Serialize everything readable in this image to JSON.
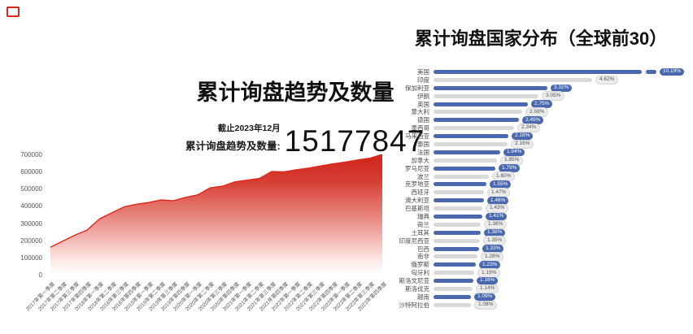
{
  "left_chart": {
    "title": "累计询盘趋势及数量",
    "as_of": "截止2023年12月",
    "stat_label": "累计询盘趋势及数量:",
    "total": "15177847"
  },
  "right_chart": {
    "title": "累计询盘国家分布（全球前30）"
  },
  "colors": {
    "red_line": "#e02517",
    "red_fill_top": "#cf251b",
    "blue_bar": "#4a68ad",
    "gray_bar": "#d9d9d9"
  },
  "chart_data": [
    {
      "type": "area",
      "title": "累计询盘趋势及数量",
      "x": [
        "2017年第一季度",
        "2017年第二季度",
        "2017年第三季度",
        "2017年第四季度",
        "2018年第一季度",
        "2018年第二季度",
        "2018年第三季度",
        "2018年第四季度",
        "2019年第一季度",
        "2019年第二季度",
        "2019年第三季度",
        "2019年第四季度",
        "2020年第一季度",
        "2020年第二季度",
        "2020年第三季度",
        "2020年第四季度",
        "2021年第一季度",
        "2021年第二季度",
        "2021年第三季度",
        "2021年第四季度",
        "2022年第一季度",
        "2022年第二季度",
        "2022年第三季度",
        "2022年第四季度",
        "2023年第一季度",
        "2023年第二季度",
        "2023年第三季度",
        "2023年第四季度"
      ],
      "values": [
        160000,
        195000,
        230000,
        260000,
        325000,
        360000,
        395000,
        410000,
        420000,
        435000,
        430000,
        450000,
        465000,
        505000,
        515000,
        540000,
        550000,
        560000,
        600000,
        598000,
        610000,
        620000,
        633000,
        645000,
        655000,
        668000,
        678000,
        700000
      ],
      "ylim": [
        0,
        700000
      ],
      "yticks": [
        0,
        100000,
        200000,
        300000,
        400000,
        500000,
        600000,
        700000
      ],
      "grid": false,
      "legend": false
    },
    {
      "type": "bar",
      "orientation": "horizontal",
      "title": "累计询盘国家分布（全球前30）",
      "categories": [
        "美国",
        "印度",
        "保加利亚",
        "伊朗",
        "英国",
        "意大利",
        "德国",
        "墨西哥",
        "马来西亚",
        "泰国",
        "法国",
        "加拿大",
        "罗马尼亚",
        "波兰",
        "克罗地亚",
        "西班牙",
        "澳大利亚",
        "巴基斯坦",
        "瑞典",
        "荷兰",
        "土耳其",
        "印度尼西亚",
        "巴西",
        "南非",
        "俄罗斯",
        "匈牙利",
        "斯洛文尼亚",
        "斯洛伐克",
        "越南",
        "沙特阿拉伯"
      ],
      "values": [
        10.19,
        4.62,
        3.32,
        3.05,
        2.75,
        2.58,
        2.49,
        2.34,
        2.18,
        2.16,
        1.94,
        1.85,
        1.79,
        1.6,
        1.55,
        1.47,
        1.46,
        1.43,
        1.41,
        1.38,
        1.38,
        1.35,
        1.33,
        1.28,
        1.23,
        1.19,
        1.16,
        1.14,
        1.09,
        1.08
      ],
      "labels": [
        "10.19%",
        "4.62%",
        "3.32%",
        "3.05%",
        "2.75%",
        "2.58%",
        "2.49%",
        "2.34%",
        "2.18%",
        "2.16%",
        "1.94%",
        "1.85%",
        "1.79%",
        "1.60%",
        "1.55%",
        "1.47%",
        "1.46%",
        "1.43%",
        "1.41%",
        "1.38%",
        "1.38%",
        "1.35%",
        "1.33%",
        "1.28%",
        "1.23%",
        "1.19%",
        "1.16%",
        "1.14%",
        "1.09%",
        "1.08%"
      ],
      "axis_break_first_bar": true,
      "color_pattern": "alternating blue/gray, first row blue",
      "legend": false
    }
  ]
}
